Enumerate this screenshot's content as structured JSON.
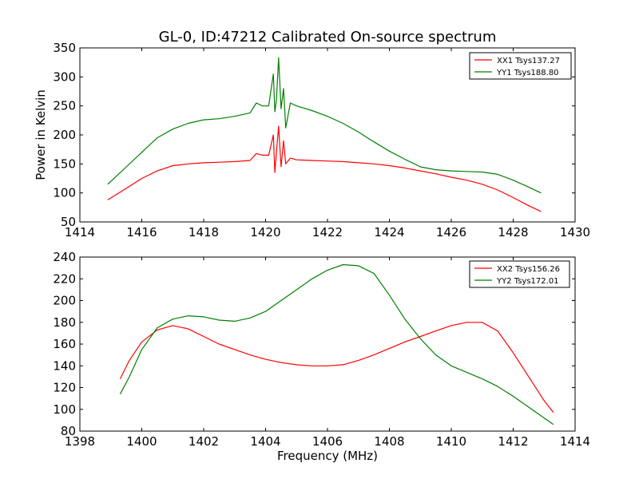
{
  "title": "GL-0, ID:47212 Calibrated On-source spectrum",
  "chart_data": [
    {
      "type": "line",
      "xlabel": "",
      "ylabel": "Power in Kelvin",
      "xlim": [
        1414,
        1430
      ],
      "ylim": [
        50,
        350
      ],
      "xticks": [
        1414,
        1416,
        1418,
        1420,
        1422,
        1424,
        1426,
        1428,
        1430
      ],
      "yticks": [
        50,
        100,
        150,
        200,
        250,
        300,
        350
      ],
      "legend_position": "top-right",
      "grid": false,
      "series": [
        {
          "name": "XX1 Tsys137.27",
          "color": "#ff0000",
          "x": [
            1414.9,
            1415.2,
            1415.5,
            1416.0,
            1416.5,
            1417.0,
            1417.5,
            1418.0,
            1418.5,
            1419.0,
            1419.5,
            1419.7,
            1419.9,
            1420.1,
            1420.25,
            1420.3,
            1420.35,
            1420.42,
            1420.5,
            1420.58,
            1420.65,
            1420.8,
            1421.0,
            1421.5,
            1422.0,
            1422.5,
            1423.0,
            1423.5,
            1424.0,
            1424.5,
            1425.0,
            1425.5,
            1426.0,
            1426.5,
            1427.0,
            1427.5,
            1428.0,
            1428.5,
            1428.9
          ],
          "y": [
            88,
            98,
            108,
            125,
            138,
            147,
            150,
            152,
            153,
            154,
            156,
            168,
            165,
            165,
            200,
            135,
            170,
            215,
            145,
            190,
            150,
            160,
            157,
            156,
            155,
            154,
            152,
            150,
            147,
            143,
            138,
            133,
            127,
            122,
            115,
            105,
            92,
            78,
            68
          ]
        },
        {
          "name": "YY1 Tsys188.80",
          "color": "#008000",
          "x": [
            1414.9,
            1415.2,
            1415.5,
            1416.0,
            1416.5,
            1417.0,
            1417.5,
            1418.0,
            1418.5,
            1419.0,
            1419.5,
            1419.7,
            1419.9,
            1420.1,
            1420.25,
            1420.3,
            1420.35,
            1420.42,
            1420.5,
            1420.58,
            1420.65,
            1420.8,
            1421.0,
            1421.5,
            1422.0,
            1422.5,
            1423.0,
            1423.5,
            1424.0,
            1424.5,
            1425.0,
            1425.5,
            1426.0,
            1426.5,
            1427.0,
            1427.5,
            1428.0,
            1428.5,
            1428.9
          ],
          "y": [
            115,
            130,
            145,
            170,
            195,
            210,
            220,
            226,
            228,
            232,
            238,
            255,
            250,
            250,
            305,
            240,
            260,
            333,
            245,
            280,
            212,
            255,
            250,
            242,
            232,
            220,
            205,
            188,
            172,
            158,
            145,
            140,
            138,
            137,
            136,
            132,
            122,
            110,
            100
          ]
        }
      ]
    },
    {
      "type": "line",
      "xlabel": "Frequency (MHz)",
      "ylabel": "",
      "xlim": [
        1398,
        1414
      ],
      "ylim": [
        80,
        240
      ],
      "xticks": [
        1398,
        1400,
        1402,
        1404,
        1406,
        1408,
        1410,
        1412,
        1414
      ],
      "yticks": [
        80,
        100,
        120,
        140,
        160,
        180,
        200,
        220,
        240
      ],
      "legend_position": "top-right",
      "grid": false,
      "series": [
        {
          "name": "XX2 Tsys156.26",
          "color": "#ff0000",
          "x": [
            1399.3,
            1399.6,
            1400.0,
            1400.5,
            1401.0,
            1401.5,
            1402.0,
            1402.5,
            1403.0,
            1403.5,
            1404.0,
            1404.5,
            1405.0,
            1405.5,
            1406.0,
            1406.5,
            1407.0,
            1407.5,
            1408.0,
            1408.5,
            1409.0,
            1409.5,
            1410.0,
            1410.5,
            1411.0,
            1411.5,
            1412.0,
            1412.5,
            1413.0,
            1413.3
          ],
          "y": [
            128,
            145,
            162,
            173,
            177,
            174,
            167,
            160,
            155,
            150,
            146,
            143,
            141,
            140,
            140,
            141,
            145,
            150,
            156,
            162,
            167,
            172,
            177,
            180,
            180,
            172,
            152,
            130,
            108,
            97
          ]
        },
        {
          "name": "YY2 Tsys172.01",
          "color": "#008000",
          "x": [
            1399.3,
            1399.6,
            1400.0,
            1400.5,
            1401.0,
            1401.5,
            1402.0,
            1402.5,
            1403.0,
            1403.5,
            1404.0,
            1404.5,
            1405.0,
            1405.5,
            1406.0,
            1406.5,
            1407.0,
            1407.5,
            1408.0,
            1408.5,
            1409.0,
            1409.5,
            1410.0,
            1410.5,
            1411.0,
            1411.5,
            1412.0,
            1412.5,
            1413.0,
            1413.3
          ],
          "y": [
            114,
            130,
            155,
            175,
            183,
            186,
            185,
            182,
            181,
            184,
            190,
            200,
            210,
            220,
            228,
            233,
            232,
            225,
            205,
            183,
            165,
            150,
            140,
            134,
            128,
            121,
            112,
            102,
            92,
            86
          ]
        }
      ]
    }
  ]
}
